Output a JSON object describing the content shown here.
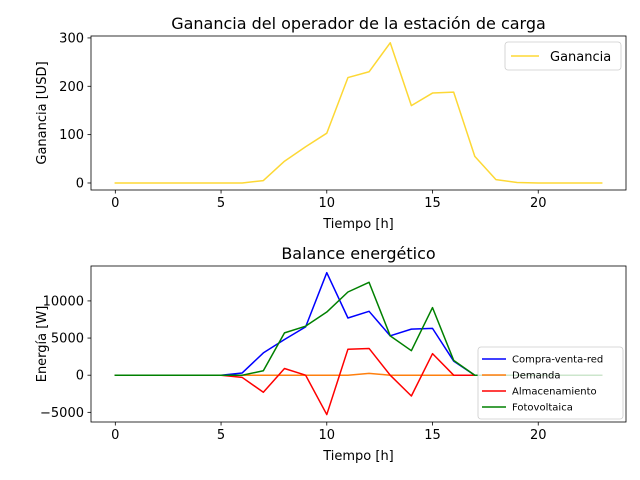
{
  "chart_data": [
    {
      "type": "line",
      "title": "Ganancia del operador de la estación de carga",
      "xlabel": "Tiempo [h]",
      "ylabel": "Ganancia [USD]",
      "xlim": [
        -1.15,
        24.15
      ],
      "ylim": [
        -14.5,
        304
      ],
      "xticks": [
        0,
        5,
        10,
        15,
        20
      ],
      "yticks": [
        0,
        100,
        200,
        300
      ],
      "xtick_labels": [
        "0",
        "5",
        "10",
        "15",
        "20"
      ],
      "ytick_labels": [
        "0",
        "100",
        "200",
        "300"
      ],
      "grid": false,
      "legend_position": "top-right",
      "x": [
        0,
        1,
        2,
        3,
        4,
        5,
        6,
        7,
        8,
        9,
        10,
        11,
        12,
        13,
        14,
        15,
        16,
        17,
        18,
        19,
        20,
        21,
        22,
        23
      ],
      "series": [
        {
          "name": "Ganancia",
          "color": "#fdd835",
          "values": [
            0,
            0,
            0,
            0,
            0,
            0,
            0,
            5,
            45,
            75,
            103,
            218,
            230,
            290,
            160,
            186,
            188,
            55,
            7,
            1,
            0,
            0,
            0,
            0
          ]
        }
      ]
    },
    {
      "type": "line",
      "title": "Balance energético",
      "xlabel": "Tiempo [h]",
      "ylabel": "Energía [W]",
      "xlim": [
        -1.15,
        24.15
      ],
      "ylim": [
        -6300,
        14700
      ],
      "xticks": [
        0,
        5,
        10,
        15,
        20
      ],
      "yticks": [
        -5000,
        0,
        5000,
        10000
      ],
      "xtick_labels": [
        "0",
        "5",
        "10",
        "15",
        "20"
      ],
      "ytick_labels": [
        "−5000",
        "0",
        "5000",
        "10000"
      ],
      "grid": false,
      "legend_position": "lower-right",
      "x": [
        0,
        1,
        2,
        3,
        4,
        5,
        6,
        7,
        8,
        9,
        10,
        11,
        12,
        13,
        14,
        15,
        16,
        17,
        18,
        19,
        20,
        21,
        22,
        23
      ],
      "series": [
        {
          "name": "Compra-venta-red",
          "color": "#0000ff",
          "values": [
            0,
            0,
            0,
            0,
            0,
            0,
            300,
            3000,
            4800,
            6500,
            13800,
            7700,
            8600,
            5300,
            6200,
            6300,
            1900,
            0,
            0,
            0,
            0,
            0,
            0,
            0
          ]
        },
        {
          "name": "Demanda",
          "color": "#ff7f0e",
          "values": [
            0,
            0,
            0,
            0,
            0,
            0,
            0,
            0,
            0,
            0,
            0,
            0,
            250,
            0,
            0,
            0,
            0,
            0,
            0,
            0,
            0,
            0,
            0,
            0
          ]
        },
        {
          "name": "Almacenamiento",
          "color": "#ff0000",
          "values": [
            0,
            0,
            0,
            0,
            0,
            0,
            -300,
            -2300,
            900,
            0,
            -5300,
            3500,
            3600,
            0,
            -2800,
            2900,
            0,
            0,
            0,
            0,
            0,
            0,
            0,
            0
          ]
        },
        {
          "name": "Fotovoltaica",
          "color": "#008000",
          "values": [
            0,
            0,
            0,
            0,
            0,
            0,
            0,
            600,
            5700,
            6600,
            8500,
            11200,
            12500,
            5300,
            3300,
            9100,
            2000,
            0,
            0,
            0,
            0,
            0,
            0,
            0
          ]
        }
      ]
    }
  ]
}
